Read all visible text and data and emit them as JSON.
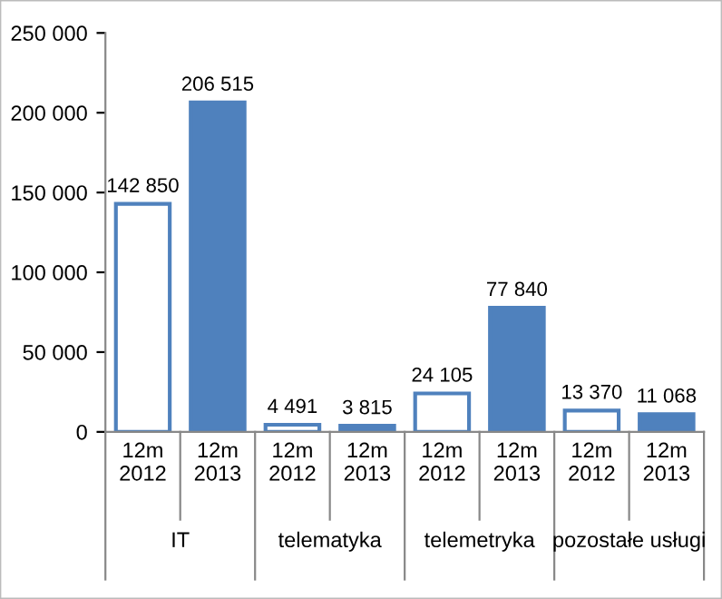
{
  "chart_data": {
    "type": "bar",
    "categories": [
      "IT",
      "telematyka",
      "telemetryka",
      "pozostałe usługi"
    ],
    "series": [
      {
        "name": "12m\n2012",
        "color": "#ffffff",
        "values": [
          142850,
          4491,
          24105,
          13370
        ]
      },
      {
        "name": "12m\n2013",
        "color": "#4f81bd",
        "values": [
          206515,
          3815,
          77840,
          11068
        ]
      }
    ],
    "ylim": [
      0,
      250000
    ],
    "yticks": [
      0,
      {
        "value": 50000,
        "label": "50 000"
      },
      {
        "value": 100000,
        "label": "100 000"
      },
      {
        "value": 150000,
        "label": "150 000"
      },
      {
        "value": 200000,
        "label": "200 000"
      },
      {
        "value": 250000,
        "label": "250 000"
      }
    ],
    "data_labels": true,
    "grid": false,
    "legend": false
  }
}
